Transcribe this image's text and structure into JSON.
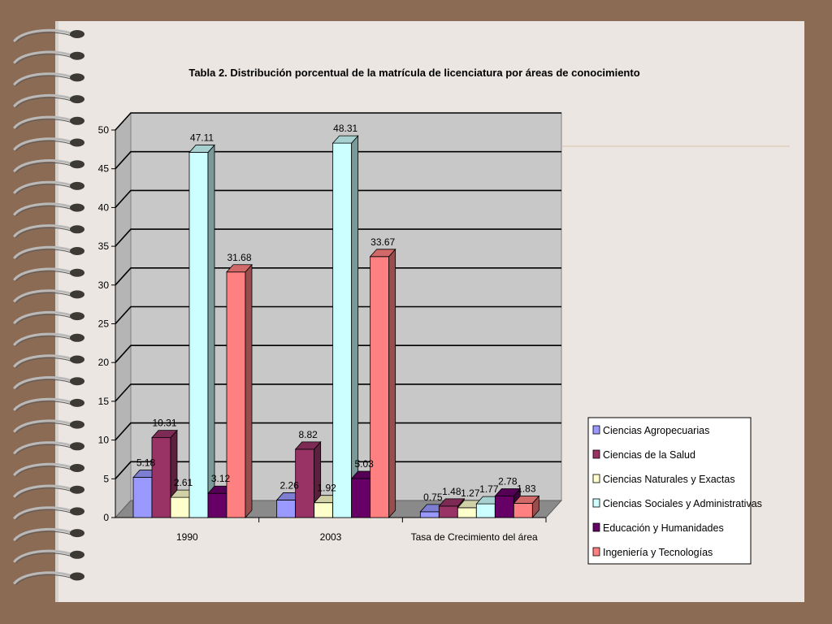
{
  "colors": {
    "background": "#8c6b55",
    "page": "#ebe6e2",
    "plot_back_wall": "#c8c8c8",
    "plot_floor": "#8a8a8a"
  },
  "chart_data": {
    "type": "bar",
    "title": "Tabla 2. Distribución porcentual de la matrícula de licenciatura por áreas de conocimiento",
    "categories": [
      "1990",
      "2003",
      "Tasa de Crecimiento del área"
    ],
    "series": [
      {
        "name": "Ciencias Agropecuarias",
        "color": "#9999ff",
        "values": [
          5.18,
          2.26,
          0.75
        ]
      },
      {
        "name": "Ciencias de la Salud",
        "color": "#993366",
        "values": [
          10.31,
          8.82,
          1.48
        ]
      },
      {
        "name": "Ciencias Naturales y Exactas",
        "color": "#ffffcc",
        "values": [
          2.61,
          1.92,
          1.27
        ]
      },
      {
        "name": "Ciencias Sociales y Administrativas",
        "color": "#ccffff",
        "values": [
          47.11,
          48.31,
          1.77
        ]
      },
      {
        "name": "Educación y Humanidades",
        "color": "#660066",
        "values": [
          3.12,
          5.03,
          2.78
        ]
      },
      {
        "name": "Ingeniería y Tecnologías",
        "color": "#ff8080",
        "values": [
          31.68,
          33.67,
          1.83
        ]
      }
    ],
    "y_ticks": [
      "0",
      "5",
      "10",
      "15",
      "20",
      "25",
      "30",
      "35",
      "40",
      "45",
      "50"
    ],
    "ylim": [
      0,
      50
    ],
    "grid": true,
    "legend_position": "right",
    "projection": "3d"
  }
}
